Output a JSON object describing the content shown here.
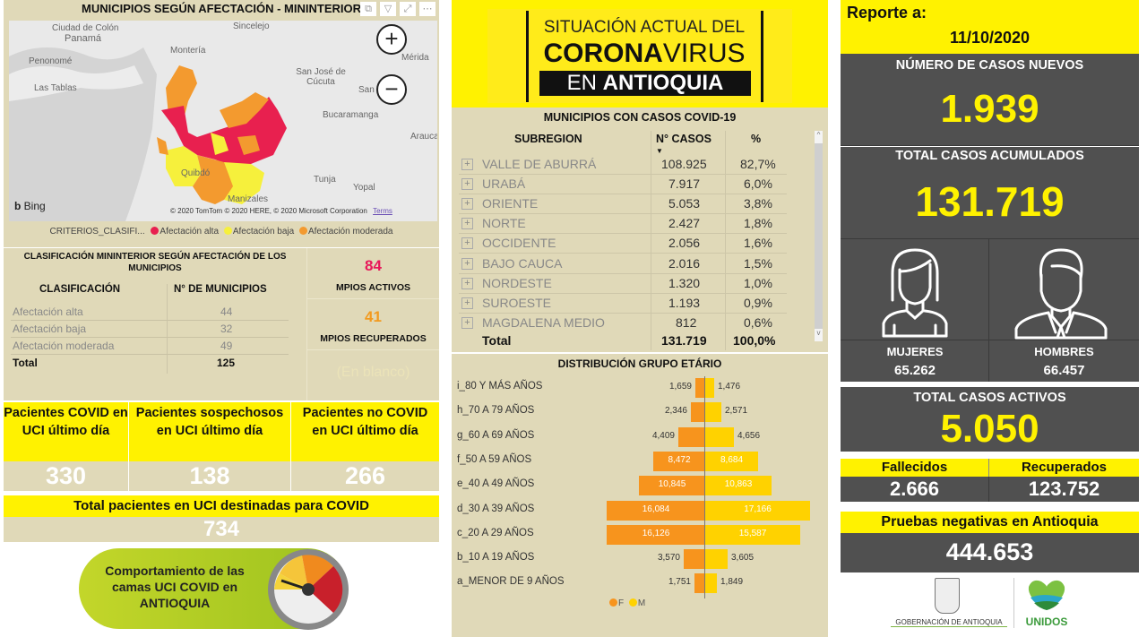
{
  "map_panel": {
    "title": "MUNICIPIOS SEGÚN AFECTACIÓN - MININTERIOR",
    "visual_icons": [
      "copy-icon",
      "filter-icon",
      "focus-mode-icon",
      "more-options-icon"
    ],
    "zoom_in": "+",
    "zoom_out": "−",
    "map_labels": [
      "Ciudad de Colón",
      "Panamá",
      "Penonomé",
      "Las Tablas",
      "Montería",
      "Sincelejo",
      "San José de Cúcuta",
      "Mérida",
      "San",
      "Bucaramanga",
      "Arauca",
      "Quibdó",
      "Tunja",
      "Yopal",
      "Manizales"
    ],
    "bing": "Bing",
    "attribution": "© 2020 TomTom © 2020 HERE, © 2020 Microsoft Corporation",
    "terms": "Terms",
    "legend": {
      "title": "CRITERIOS_CLASIFI...",
      "items": [
        {
          "label": "Afectación alta",
          "color": "#e8204f"
        },
        {
          "label": "Afectación baja",
          "color": "#f6f03c"
        },
        {
          "label": "Afectación moderada",
          "color": "#f39a2f"
        }
      ]
    }
  },
  "classification": {
    "title": "CLASIFICACIÓN MININTERIOR SEGÚN AFECTACIÓN DE LOS MUNICIPIOS",
    "headers": [
      "CLASIFICACIÓN",
      "N° DE MUNICIPIOS"
    ],
    "rows": [
      {
        "label": "Afectación alta",
        "value": "44"
      },
      {
        "label": "Afectación baja",
        "value": "32"
      },
      {
        "label": "Afectación moderada",
        "value": "49"
      }
    ],
    "total": {
      "label": "Total",
      "value": "125"
    }
  },
  "mpios": {
    "activos_value": "84",
    "activos_label": "MPIOS ACTIVOS",
    "activos_color": "#e8185a",
    "recuperados_value": "41",
    "recuperados_label": "MPIOS RECUPERADOS",
    "recuperados_color": "#f39a1e",
    "blank_label": "(En blanco)"
  },
  "uci": {
    "cards": [
      {
        "label": "Pacientes COVID en UCI último día",
        "value": "330"
      },
      {
        "label": "Pacientes sospechosos en UCI último día",
        "value": "138"
      },
      {
        "label": "Pacientes no COVID en UCI último día",
        "value": "266"
      }
    ],
    "total_label": "Total pacientes en UCI destinadas para COVID",
    "total_value": "734",
    "banner_text": "Comportamiento de las camas UCI COVID en ANTIOQUIA"
  },
  "header": {
    "line1": "SITUACIÓN ACTUAL DEL",
    "line2_bold": "CORONA",
    "line2_light": "VIRUS",
    "line3_light": "EN ",
    "line3_bold": "ANTIOQUIA"
  },
  "subregion_table": {
    "title": "MUNICIPIOS CON CASOS COVID-19",
    "headers": [
      "SUBREGION",
      "N° CASOS",
      "%"
    ],
    "rows": [
      {
        "name": "VALLE DE ABURRÁ",
        "cases": "108.925",
        "pct": "82,7%"
      },
      {
        "name": "URABÁ",
        "cases": "7.917",
        "pct": "6,0%"
      },
      {
        "name": "ORIENTE",
        "cases": "5.053",
        "pct": "3,8%"
      },
      {
        "name": "NORTE",
        "cases": "2.427",
        "pct": "1,8%"
      },
      {
        "name": "OCCIDENTE",
        "cases": "2.056",
        "pct": "1,6%"
      },
      {
        "name": "BAJO CAUCA",
        "cases": "2.016",
        "pct": "1,5%"
      },
      {
        "name": "NORDESTE",
        "cases": "1.320",
        "pct": "1,0%"
      },
      {
        "name": "SUROESTE",
        "cases": "1.193",
        "pct": "0,9%"
      },
      {
        "name": "MAGDALENA MEDIO",
        "cases": "812",
        "pct": "0,6%"
      }
    ],
    "total": {
      "name": "Total",
      "cases": "131.719",
      "pct": "100,0%"
    }
  },
  "chart_data": {
    "type": "bar",
    "title": "DISTRIBUCIÓN GRUPO ETÁRIO",
    "orientation": "horizontal-population-pyramid",
    "categories": [
      "i_80 Y MÁS AÑOS",
      "h_70 A 79 AÑOS",
      "g_60 A 69 AÑOS",
      "f_50 A 59 AÑOS",
      "e_40 A 49 AÑOS",
      "d_30 A 39 AÑOS",
      "c_20 A 29 AÑOS",
      "b_10 A 19 AÑOS",
      "a_MENOR DE 9 AÑOS"
    ],
    "series": [
      {
        "name": "F",
        "color": "#f7941d",
        "values": [
          1659,
          2346,
          4409,
          8472,
          10845,
          16084,
          16126,
          3570,
          1751
        ],
        "labels": [
          "1,659",
          "2,346",
          "4,409",
          "8,472",
          "10,845",
          "16,084",
          "16,126",
          "3,570",
          "1,751"
        ]
      },
      {
        "name": "M",
        "color": "#ffd200",
        "values": [
          1476,
          2571,
          4656,
          8684,
          10863,
          17166,
          15587,
          3605,
          1849
        ],
        "labels": [
          "1,476",
          "2,571",
          "4,656",
          "8,684",
          "10,863",
          "17,166",
          "15,587",
          "3,605",
          "1,849"
        ]
      }
    ],
    "legend": [
      "F",
      "M"
    ],
    "legend_position": "bottom",
    "grid": false
  },
  "report": {
    "label": "Reporte a:",
    "date": "11/10/2020",
    "new_cases_label": "NÚMERO DE CASOS NUEVOS",
    "new_cases_value": "1.939",
    "total_label": "TOTAL CASOS ACUMULADOS",
    "total_value": "131.719",
    "women_label": "MUJERES",
    "women_value": "65.262",
    "men_label": "HOMBRES",
    "men_value": "66.457",
    "active_label": "TOTAL CASOS ACTIVOS",
    "active_value": "5.050",
    "deaths_label": "Fallecidos",
    "deaths_value": "2.666",
    "recovered_label": "Recuperados",
    "recovered_value": "123.752",
    "negative_label": "Pruebas negativas en Antioquia",
    "negative_value": "444.653",
    "logo_gov": "GOBERNACIÓN DE ANTIOQUIA",
    "logo_unidos": "UNIDOS"
  }
}
